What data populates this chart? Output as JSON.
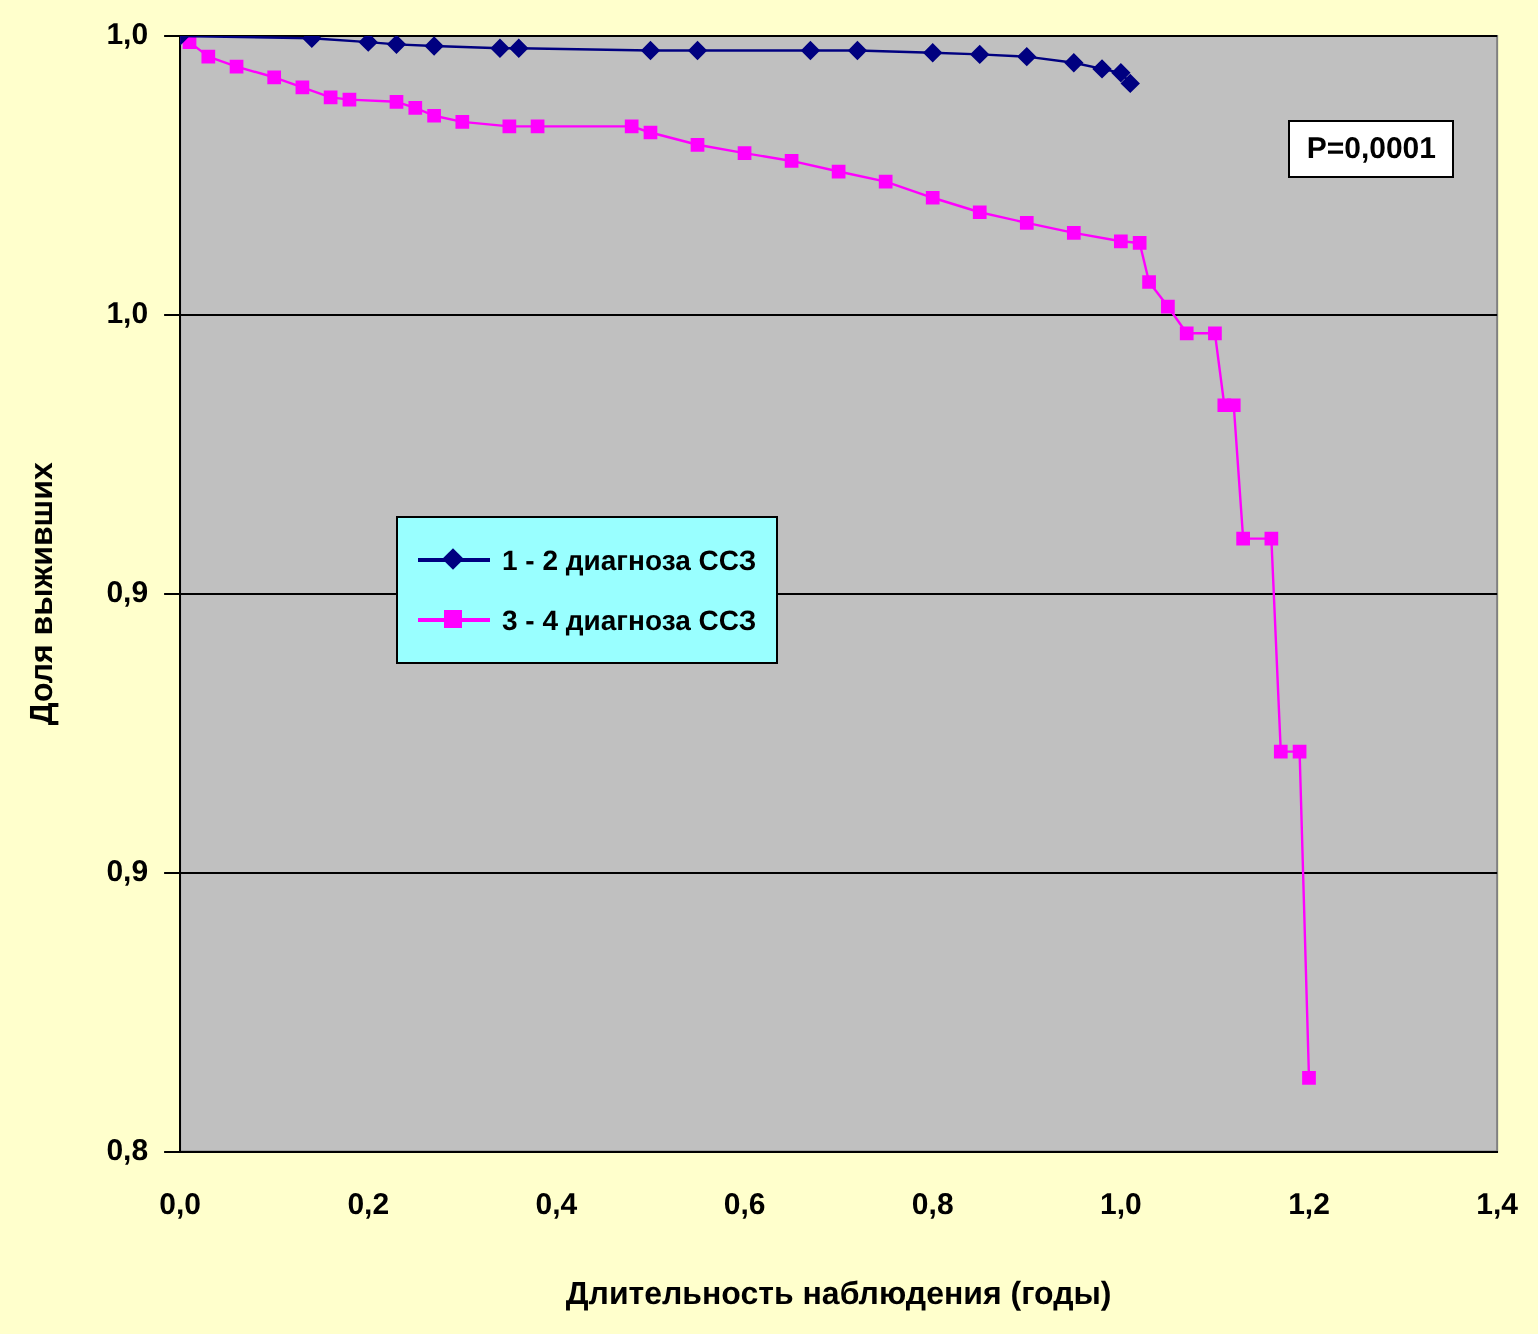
{
  "chart_data": {
    "type": "line",
    "xlabel": "Длительность наблюдения (годы)",
    "ylabel": "Доля выживших",
    "xlim": [
      0,
      1.4
    ],
    "xticks": [
      {
        "value": 0,
        "label": "0,0"
      },
      {
        "value": 0.2,
        "label": "0,2"
      },
      {
        "value": 0.4,
        "label": "0,4"
      },
      {
        "value": 0.6,
        "label": "0,6"
      },
      {
        "value": 0.8,
        "label": "0,8"
      },
      {
        "value": 1,
        "label": "1,0"
      },
      {
        "value": 1.2,
        "label": "1,2"
      },
      {
        "value": 1.4,
        "label": "1,4"
      }
    ],
    "ylim": [
      0.8,
      1
    ],
    "yticks": [
      {
        "value": 0.8,
        "label": "0,8"
      },
      {
        "value": 0.85,
        "label": "0,9"
      },
      {
        "value": 0.9,
        "label": "0,9"
      },
      {
        "value": 0.95,
        "label": "1,0"
      },
      {
        "value": 1,
        "label": "1,0"
      }
    ],
    "grid": "y",
    "legend": "center",
    "line_style": "solid",
    "annotations": [
      "P=0,0001"
    ],
    "series": [
      {
        "name": "1 - 2 диагноза ССЗ",
        "color": "#000080",
        "marker": "diamond",
        "x": [
          0,
          0.14,
          0.2,
          0.23,
          0.27,
          0.34,
          0.36,
          0.5,
          0.55,
          0.67,
          0.72,
          0.8,
          0.85,
          0.9,
          0.95,
          0.98,
          1.0,
          1.01
        ],
        "values": [
          1,
          0.9996,
          0.9989,
          0.9985,
          0.9982,
          0.9978,
          0.9978,
          0.9974,
          0.9974,
          0.9974,
          0.9974,
          0.997,
          0.9967,
          0.9963,
          0.9952,
          0.9941,
          0.9934,
          0.9915
        ]
      },
      {
        "name": "3 - 4 диагноза ССЗ",
        "color": "#ff00ff",
        "marker": "square",
        "x": [
          0,
          0.01,
          0.03,
          0.06,
          0.1,
          0.13,
          0.16,
          0.18,
          0.23,
          0.25,
          0.27,
          0.3,
          0.35,
          0.38,
          0.48,
          0.5,
          0.55,
          0.6,
          0.65,
          0.7,
          0.75,
          0.8,
          0.85,
          0.9,
          0.95,
          1.0,
          1.02,
          1.03,
          1.05,
          1.07,
          1.1,
          1.11,
          1.12,
          1.13,
          1.16,
          1.17,
          1.19,
          1.2
        ],
        "values": [
          1,
          0.9989,
          0.9963,
          0.9945,
          0.9926,
          0.9908,
          0.989,
          0.9886,
          0.9882,
          0.9871,
          0.9857,
          0.9846,
          0.9838,
          0.9838,
          0.9838,
          0.9827,
          0.9805,
          0.979,
          0.9776,
          0.9757,
          0.9739,
          0.971,
          0.9684,
          0.9665,
          0.9647,
          0.9632,
          0.9629,
          0.9559,
          0.9515,
          0.9467,
          0.9467,
          0.9338,
          0.9338,
          0.9099,
          0.9099,
          0.8717,
          0.8717,
          0.8132
        ]
      }
    ]
  }
}
